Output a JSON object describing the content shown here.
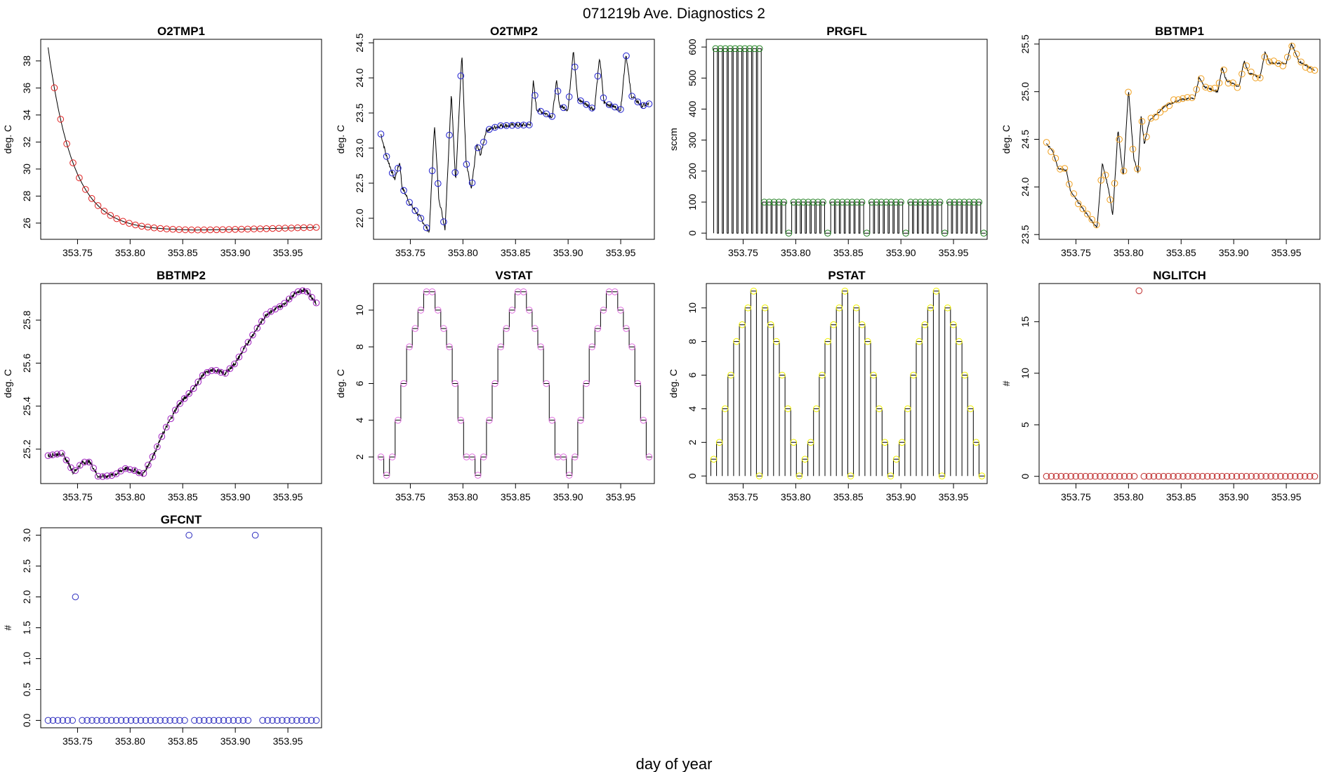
{
  "figure": {
    "title": "071219b   Ave. Diagnostics 2",
    "xlabel": "day of year"
  },
  "chart_data": [
    {
      "name": "O2TMP1",
      "type": "scatter",
      "title": "O2TMP1",
      "ylabel": "deg. C",
      "xlim": [
        353.715,
        353.982
      ],
      "ylim": [
        24.8,
        39.6
      ],
      "xticks": [
        353.75,
        353.8,
        353.85,
        353.9,
        353.95
      ],
      "xtick_labels": [
        "353.75",
        "353.80",
        "353.85",
        "353.90",
        "353.95"
      ],
      "yticks": [
        26,
        28,
        30,
        32,
        34,
        36,
        38
      ],
      "ytick_labels": [
        "26",
        "28",
        "30",
        "32",
        "34",
        "36",
        "38"
      ],
      "point_color": "#e02020",
      "grid": false,
      "line": "exp-decay",
      "trace": {
        "kind": "exp",
        "start": 39.0,
        "end": 25.45,
        "rate": 42
      }
    },
    {
      "name": "O2TMP2",
      "type": "scatter",
      "title": "O2TMP2",
      "ylabel": "deg. C",
      "xlim": [
        353.715,
        353.982
      ],
      "ylim": [
        21.7,
        24.55
      ],
      "xticks": [
        353.75,
        353.8,
        353.85,
        353.9,
        353.95
      ],
      "xtick_labels": [
        "353.75",
        "353.80",
        "353.85",
        "353.90",
        "353.95"
      ],
      "yticks": [
        22.0,
        22.5,
        23.0,
        23.5,
        24.0,
        24.5
      ],
      "ytick_labels": [
        "22.0",
        "22.5",
        "23.0",
        "23.5",
        "24.0",
        "24.5"
      ],
      "point_color": "#2020d0",
      "grid": false,
      "trace": {
        "kind": "o2tmp2"
      }
    },
    {
      "name": "PRGFL",
      "type": "scatter",
      "title": "PRGFL",
      "ylabel": "sccm",
      "xlim": [
        353.715,
        353.982
      ],
      "ylim": [
        -20,
        625
      ],
      "xticks": [
        353.75,
        353.8,
        353.85,
        353.9,
        353.95
      ],
      "xtick_labels": [
        "353.75",
        "353.80",
        "353.85",
        "353.90",
        "353.95"
      ],
      "yticks": [
        0,
        100,
        200,
        300,
        400,
        500,
        600
      ],
      "ytick_labels": [
        "0",
        "100",
        "200",
        "300",
        "400",
        "500",
        "600"
      ],
      "point_color": "#208020",
      "grid": false,
      "trace": {
        "kind": "prgfl",
        "high1": 595,
        "high2": 100
      }
    },
    {
      "name": "BBTMP1",
      "type": "scatter",
      "title": "BBTMP1",
      "ylabel": "deg. C",
      "xlim": [
        353.715,
        353.982
      ],
      "ylim": [
        23.45,
        25.55
      ],
      "xticks": [
        353.75,
        353.8,
        353.85,
        353.9,
        353.95
      ],
      "xtick_labels": [
        "353.75",
        "353.80",
        "353.85",
        "353.90",
        "353.95"
      ],
      "yticks": [
        23.5,
        24.0,
        24.5,
        25.0,
        25.5
      ],
      "ytick_labels": [
        "23.5",
        "24.0",
        "24.5",
        "25.0",
        "25.5"
      ],
      "point_color": "#f0a020",
      "grid": false,
      "trace": {
        "kind": "bbtmp1"
      }
    },
    {
      "name": "BBTMP2",
      "type": "scatter",
      "title": "BBTMP2",
      "ylabel": "deg. C",
      "xlim": [
        353.715,
        353.982
      ],
      "ylim": [
        25.04,
        25.97
      ],
      "xticks": [
        353.75,
        353.8,
        353.85,
        353.9,
        353.95
      ],
      "xtick_labels": [
        "353.75",
        "353.80",
        "353.85",
        "353.90",
        "353.95"
      ],
      "yticks": [
        25.2,
        25.4,
        25.6,
        25.8
      ],
      "ytick_labels": [
        "25.2",
        "25.4",
        "25.6",
        "25.8"
      ],
      "point_color": "#a020c0",
      "grid": false,
      "trace": {
        "kind": "bbtmp2"
      }
    },
    {
      "name": "VSTAT",
      "type": "scatter",
      "title": "VSTAT",
      "ylabel": "deg. C",
      "xlim": [
        353.715,
        353.982
      ],
      "ylim": [
        0.55,
        11.45
      ],
      "xticks": [
        353.75,
        353.8,
        353.85,
        353.9,
        353.95
      ],
      "xtick_labels": [
        "353.75",
        "353.80",
        "353.85",
        "353.90",
        "353.95"
      ],
      "yticks": [
        2,
        4,
        6,
        8,
        10
      ],
      "ytick_labels": [
        "2",
        "4",
        "6",
        "8",
        "10"
      ],
      "point_color": "#e070e0",
      "grid": false,
      "trace": {
        "kind": "vstat"
      }
    },
    {
      "name": "PSTAT",
      "type": "scatter",
      "title": "PSTAT",
      "ylabel": "deg. C",
      "xlim": [
        353.715,
        353.982
      ],
      "ylim": [
        -0.45,
        11.45
      ],
      "xticks": [
        353.75,
        353.8,
        353.85,
        353.9,
        353.95
      ],
      "xtick_labels": [
        "353.75",
        "353.80",
        "353.85",
        "353.90",
        "353.95"
      ],
      "yticks": [
        0,
        2,
        4,
        6,
        8,
        10
      ],
      "ytick_labels": [
        "0",
        "2",
        "4",
        "6",
        "8",
        "10"
      ],
      "point_color": "#f0f000",
      "grid": false,
      "trace": {
        "kind": "pstat"
      }
    },
    {
      "name": "NGLITCH",
      "type": "scatter",
      "title": "NGLITCH",
      "ylabel": "#",
      "xlim": [
        353.715,
        353.982
      ],
      "ylim": [
        -0.7,
        18.7
      ],
      "xticks": [
        353.75,
        353.8,
        353.85,
        353.9,
        353.95
      ],
      "xtick_labels": [
        "353.75",
        "353.80",
        "353.85",
        "353.90",
        "353.95"
      ],
      "yticks": [
        0,
        5,
        10,
        15
      ],
      "ytick_labels": [
        "0",
        "5",
        "10",
        "15"
      ],
      "point_color": "#c03030",
      "grid": false,
      "trace": {
        "kind": "points",
        "baseline": 0,
        "spikes": [
          [
            353.81,
            18
          ]
        ]
      }
    },
    {
      "name": "GFCNT",
      "type": "scatter",
      "title": "GFCNT",
      "ylabel": "#",
      "xlim": [
        353.715,
        353.982
      ],
      "ylim": [
        -0.12,
        3.12
      ],
      "xticks": [
        353.75,
        353.8,
        353.85,
        353.9,
        353.95
      ],
      "xtick_labels": [
        "353.75",
        "353.80",
        "353.85",
        "353.90",
        "353.95"
      ],
      "yticks": [
        0.0,
        0.5,
        1.0,
        1.5,
        2.0,
        2.5,
        3.0
      ],
      "ytick_labels": [
        "0.0",
        "0.5",
        "1.0",
        "1.5",
        "2.0",
        "2.5",
        "3.0"
      ],
      "point_color": "#3030c0",
      "grid": false,
      "trace": {
        "kind": "points",
        "baseline": 0,
        "spikes": [
          [
            353.748,
            2
          ],
          [
            353.856,
            3
          ],
          [
            353.919,
            3
          ]
        ]
      }
    }
  ]
}
